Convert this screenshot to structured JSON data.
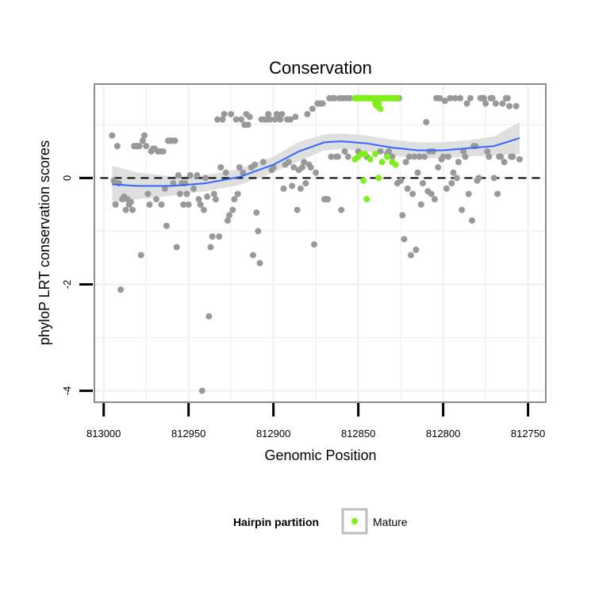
{
  "chart_data": {
    "type": "scatter",
    "title": "Conservation",
    "xlabel": "Genomic Position",
    "ylabel": "phyloP LRT conservation scores",
    "x_reversed": true,
    "xlim": [
      813005,
      812740
    ],
    "ylim": [
      -4.2,
      1.75
    ],
    "x_ticks": [
      813000,
      812950,
      812900,
      812850,
      812800,
      812750
    ],
    "x_tick_labels": [
      "813000",
      "812950",
      "812900",
      "812850",
      "812800",
      "812750"
    ],
    "y_ticks": [
      0,
      -2,
      -4
    ],
    "y_tick_labels": [
      "0",
      "-2",
      "-4"
    ],
    "grid": true,
    "reference_line": {
      "y": 0,
      "style": "dashed"
    },
    "colors": {
      "other": "#999999",
      "mature": "#7FEE1A",
      "smooth": "#3366FF",
      "ribbon": "#D9D9D9"
    },
    "legend": {
      "title": "Hairpin partition",
      "position": "bottom",
      "entries": [
        {
          "label": "Mature",
          "color": "#7FEE1A"
        }
      ]
    },
    "series": [
      {
        "category": "other",
        "points": [
          [
            812995,
            0.8
          ],
          [
            812994,
            -0.05
          ],
          [
            812993,
            -0.5
          ],
          [
            812992,
            0.6
          ],
          [
            812991,
            -0.1
          ],
          [
            812990,
            -2.1
          ],
          [
            812989,
            -0.4
          ],
          [
            812988,
            -0.35
          ],
          [
            812987,
            -0.6
          ],
          [
            812986,
            -0.4
          ],
          [
            812985,
            -0.5
          ],
          [
            812984,
            -0.45
          ],
          [
            812983,
            -0.6
          ],
          [
            812982,
            0.6
          ],
          [
            812981,
            0.6
          ],
          [
            812980,
            0.6
          ],
          [
            812979,
            0.6
          ],
          [
            812978,
            -1.45
          ],
          [
            812977,
            0.7
          ],
          [
            812976,
            0.8
          ],
          [
            812975,
            0.6
          ],
          [
            812974,
            -0.3
          ],
          [
            812973,
            -0.5
          ],
          [
            812972,
            0.5
          ],
          [
            812971,
            0.55
          ],
          [
            812970,
            0.55
          ],
          [
            812969,
            -0.4
          ],
          [
            812968,
            0.5
          ],
          [
            812967,
            0.5
          ],
          [
            812966,
            -0.5
          ],
          [
            812965,
            0.5
          ],
          [
            812964,
            -0.2
          ],
          [
            812963,
            -0.9
          ],
          [
            812962,
            0.7
          ],
          [
            812961,
            0.7
          ],
          [
            812960,
            0.7
          ],
          [
            812959,
            -0.1
          ],
          [
            812958,
            0.7
          ],
          [
            812957,
            -1.3
          ],
          [
            812956,
            0.05
          ],
          [
            812955,
            -0.3
          ],
          [
            812954,
            -0.1
          ],
          [
            812953,
            -0.5
          ],
          [
            812952,
            -0.1
          ],
          [
            812951,
            -0.3
          ],
          [
            812950,
            -0.5
          ],
          [
            812949,
            0.05
          ],
          [
            812947,
            -0.2
          ],
          [
            812945,
            0.05
          ],
          [
            812944,
            -0.4
          ],
          [
            812943,
            -0.5
          ],
          [
            812942,
            -4.0
          ],
          [
            812941,
            -0.6
          ],
          [
            812940,
            0
          ],
          [
            812939,
            -0.35
          ],
          [
            812938,
            -2.6
          ],
          [
            812937,
            -1.3
          ],
          [
            812936,
            -1.1
          ],
          [
            812935,
            -0.3
          ],
          [
            812934,
            -0.4
          ],
          [
            812933,
            1.1
          ],
          [
            812932,
            -1.1
          ],
          [
            812931,
            0.2
          ],
          [
            812930,
            1.1
          ],
          [
            812929,
            1.2
          ],
          [
            812928,
            0.1
          ],
          [
            812927,
            -0.8
          ],
          [
            812926,
            -0.7
          ],
          [
            812925,
            1.2
          ],
          [
            812924,
            -0.6
          ],
          [
            812923,
            -0.4
          ],
          [
            812922,
            1.1
          ],
          [
            812921,
            -0.3
          ],
          [
            812920,
            0.2
          ],
          [
            812919,
            1.1
          ],
          [
            812918,
            0.1
          ],
          [
            812917,
            1.0
          ],
          [
            812916,
            1.2
          ],
          [
            812915,
            1.0
          ],
          [
            812914,
            1.15
          ],
          [
            812913,
            0.2
          ],
          [
            812912,
            -1.45
          ],
          [
            812911,
            0.25
          ],
          [
            812910,
            -0.65
          ],
          [
            812909,
            -1.0
          ],
          [
            812908,
            -1.6
          ],
          [
            812907,
            1.1
          ],
          [
            812906,
            0.3
          ],
          [
            812905,
            1.1
          ],
          [
            812904,
            1.1
          ],
          [
            812903,
            1.2
          ],
          [
            812902,
            1.1
          ],
          [
            812901,
            0.15
          ],
          [
            812900,
            0.2
          ],
          [
            812899,
            1.1
          ],
          [
            812898,
            1.2
          ],
          [
            812897,
            1.15
          ],
          [
            812896,
            1.1
          ],
          [
            812895,
            1.2
          ],
          [
            812894,
            -0.2
          ],
          [
            812893,
            0.25
          ],
          [
            812892,
            1.1
          ],
          [
            812891,
            0.3
          ],
          [
            812890,
            1.1
          ],
          [
            812889,
            -0.15
          ],
          [
            812888,
            0.2
          ],
          [
            812887,
            1.15
          ],
          [
            812886,
            -0.6
          ],
          [
            812885,
            0.15
          ],
          [
            812884,
            -0.2
          ],
          [
            812883,
            0.2
          ],
          [
            812882,
            0.3
          ],
          [
            812881,
            -0.1
          ],
          [
            812880,
            1.2
          ],
          [
            812879,
            0.25
          ],
          [
            812878,
            0.2
          ],
          [
            812877,
            1.3
          ],
          [
            812876,
            -1.25
          ],
          [
            812875,
            0.1
          ],
          [
            812874,
            1.4
          ],
          [
            812873,
            1.4
          ],
          [
            812872,
            1.4
          ],
          [
            812871,
            1.4
          ],
          [
            812870,
            -0.4
          ],
          [
            812869,
            -0.4
          ],
          [
            812868,
            -0.4
          ],
          [
            812867,
            1.5
          ],
          [
            812866,
            0.4
          ],
          [
            812865,
            1.5
          ],
          [
            812864,
            1.5
          ],
          [
            812863,
            0.4
          ],
          [
            812862,
            0.4
          ],
          [
            812861,
            1.5
          ],
          [
            812860,
            -0.6
          ],
          [
            812859,
            1.5
          ],
          [
            812858,
            0.5
          ],
          [
            812857,
            1.5
          ],
          [
            812856,
            0.4
          ],
          [
            812855,
            1.5
          ],
          [
            812850,
            0.5
          ],
          [
            812845,
            0.4
          ],
          [
            812840,
            1.5
          ],
          [
            812837,
            0.5
          ],
          [
            812833,
            0.45
          ],
          [
            812832,
            0.5
          ],
          [
            812830,
            0.4
          ],
          [
            812827,
            -0.1
          ],
          [
            812826,
            1.5
          ],
          [
            812825,
            -0.05
          ],
          [
            812824,
            -0.7
          ],
          [
            812823,
            -1.15
          ],
          [
            812822,
            0.3
          ],
          [
            812821,
            -0.2
          ],
          [
            812820,
            0.4
          ],
          [
            812819,
            -1.45
          ],
          [
            812818,
            -0.3
          ],
          [
            812817,
            0.4
          ],
          [
            812816,
            -1.35
          ],
          [
            812815,
            0.1
          ],
          [
            812814,
            0.4
          ],
          [
            812813,
            -0.5
          ],
          [
            812812,
            -0.1
          ],
          [
            812811,
            0.4
          ],
          [
            812810,
            1.05
          ],
          [
            812809,
            -0.25
          ],
          [
            812808,
            0.5
          ],
          [
            812807,
            -0.3
          ],
          [
            812806,
            0.5
          ],
          [
            812805,
            -0.4
          ],
          [
            812804,
            1.5
          ],
          [
            812803,
            0.2
          ],
          [
            812802,
            1.5
          ],
          [
            812801,
            0.35
          ],
          [
            812800,
            0.4
          ],
          [
            812799,
            1.45
          ],
          [
            812798,
            -0.2
          ],
          [
            812797,
            0.4
          ],
          [
            812796,
            1.5
          ],
          [
            812795,
            -0.1
          ],
          [
            812794,
            0.1
          ],
          [
            812793,
            1.5
          ],
          [
            812792,
            0.0
          ],
          [
            812791,
            0.3
          ],
          [
            812790,
            1.5
          ],
          [
            812789,
            -0.6
          ],
          [
            812788,
            0.5
          ],
          [
            812787,
            0.4
          ],
          [
            812786,
            1.4
          ],
          [
            812785,
            -0.3
          ],
          [
            812784,
            1.5
          ],
          [
            812783,
            -0.8
          ],
          [
            812782,
            0.6
          ],
          [
            812781,
            0.6
          ],
          [
            812780,
            -0.05
          ],
          [
            812779,
            0.0
          ],
          [
            812778,
            1.5
          ],
          [
            812777,
            1.5
          ],
          [
            812776,
            1.5
          ],
          [
            812775,
            1.4
          ],
          [
            812774,
            0.5
          ],
          [
            812773,
            0.4
          ],
          [
            812772,
            1.5
          ],
          [
            812771,
            1.5
          ],
          [
            812770,
            0.0
          ],
          [
            812769,
            1.4
          ],
          [
            812768,
            -0.3
          ],
          [
            812767,
            0.4
          ],
          [
            812766,
            0.4
          ],
          [
            812765,
            1.4
          ],
          [
            812764,
            0.3
          ],
          [
            812763,
            1.5
          ],
          [
            812762,
            1.5
          ],
          [
            812761,
            1.35
          ],
          [
            812760,
            0.4
          ],
          [
            812759,
            0.4
          ],
          [
            812757,
            1.35
          ],
          [
            812755,
            0.35
          ]
        ]
      },
      {
        "category": "mature",
        "name": "Mature",
        "points": [
          [
            812852,
            1.5
          ],
          [
            812851,
            1.5
          ],
          [
            812850,
            1.5
          ],
          [
            812849,
            1.5
          ],
          [
            812848,
            1.5
          ],
          [
            812847,
            1.5
          ],
          [
            812846,
            1.5
          ],
          [
            812845,
            1.5
          ],
          [
            812844,
            1.5
          ],
          [
            812843,
            1.5
          ],
          [
            812842,
            1.5
          ],
          [
            812841,
            1.5
          ],
          [
            812840,
            1.4
          ],
          [
            812839,
            1.5
          ],
          [
            812838,
            1.5
          ],
          [
            812837,
            1.5
          ],
          [
            812836,
            1.5
          ],
          [
            812835,
            1.5
          ],
          [
            812834,
            1.5
          ],
          [
            812833,
            1.5
          ],
          [
            812832,
            1.5
          ],
          [
            812831,
            1.5
          ],
          [
            812830,
            1.5
          ],
          [
            812829,
            1.5
          ],
          [
            812828,
            1.5
          ],
          [
            812827,
            1.5
          ],
          [
            812839,
            1.35
          ],
          [
            812838,
            1.4
          ],
          [
            812837,
            1.3
          ],
          [
            812852,
            0.35
          ],
          [
            812850,
            0.4
          ],
          [
            812848,
            0.45
          ],
          [
            812847,
            -0.05
          ],
          [
            812846,
            0.45
          ],
          [
            812845,
            -0.4
          ],
          [
            812843,
            0.35
          ],
          [
            812840,
            0.45
          ],
          [
            812838,
            0.0
          ],
          [
            812836,
            0.3
          ],
          [
            812833,
            0.4
          ],
          [
            812830,
            0.3
          ],
          [
            812828,
            0.25
          ]
        ]
      }
    ],
    "smooth": {
      "x": [
        812995,
        812980,
        812960,
        812940,
        812920,
        812900,
        812885,
        812870,
        812860,
        812845,
        812830,
        812815,
        812800,
        812785,
        812770,
        812755
      ],
      "y": [
        -0.12,
        -0.15,
        -0.15,
        -0.1,
        0.02,
        0.25,
        0.5,
        0.67,
        0.69,
        0.65,
        0.57,
        0.52,
        0.52,
        0.56,
        0.6,
        0.75
      ],
      "band": [
        0.35,
        0.25,
        0.18,
        0.15,
        0.15,
        0.15,
        0.18,
        0.15,
        0.15,
        0.15,
        0.15,
        0.15,
        0.15,
        0.15,
        0.18,
        0.3
      ]
    }
  }
}
